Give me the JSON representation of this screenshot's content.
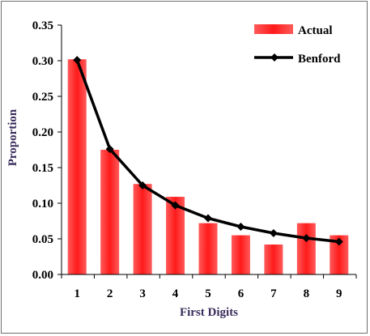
{
  "chart_data": {
    "type": "bar",
    "title": "",
    "xlabel": "First Digits",
    "ylabel": "Proportion",
    "categories": [
      "1",
      "2",
      "3",
      "4",
      "5",
      "6",
      "7",
      "8",
      "9"
    ],
    "ylim": [
      0,
      0.35
    ],
    "yticks": [
      "0.00",
      "0.05",
      "0.10",
      "0.15",
      "0.20",
      "0.25",
      "0.30",
      "0.35"
    ],
    "grid": false,
    "legend_position": "top-right",
    "series": [
      {
        "name": "Actual",
        "type": "bar",
        "color": "#ff0000",
        "values": [
          0.302,
          0.175,
          0.127,
          0.109,
          0.072,
          0.055,
          0.042,
          0.072,
          0.055
        ]
      },
      {
        "name": "Benford",
        "type": "line",
        "color": "#000000",
        "marker": "diamond",
        "values": [
          0.301,
          0.176,
          0.125,
          0.097,
          0.079,
          0.067,
          0.058,
          0.051,
          0.046
        ]
      }
    ]
  }
}
